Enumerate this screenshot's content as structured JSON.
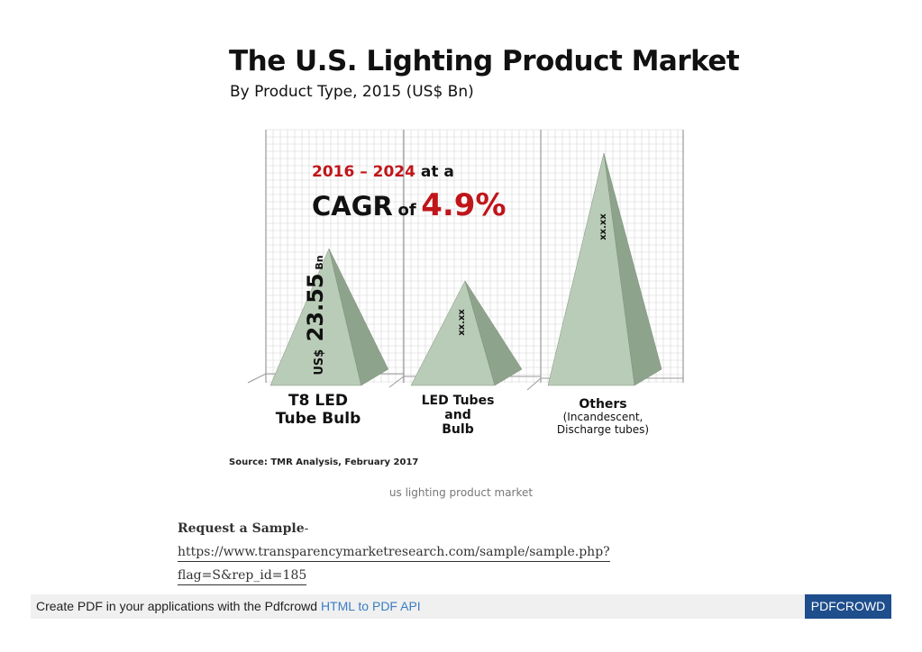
{
  "chart_data": {
    "type": "bar",
    "title": "The U.S. Lighting Product Market",
    "subtitle": "By Product Type, 2015 (US$ Bn)",
    "categories": [
      {
        "label": "T8 LED Tube Bulb",
        "sublabel": ""
      },
      {
        "label": "LED Tubes and Bulb",
        "sublabel": ""
      },
      {
        "label": "Others",
        "sublabel": "(Incandescent, Discharge tubes)"
      }
    ],
    "values": [
      23.55,
      18,
      40
    ],
    "value_labels": [
      "US$ 23.55 Bn",
      "xx.xx",
      "xx.xx"
    ],
    "annotation": {
      "years": "2016 – 2024",
      "at_a": "at a",
      "cagr": "CAGR",
      "of": "of",
      "rate": "4.9%"
    },
    "source": "Source: TMR Analysis, February 2017",
    "colors": {
      "pyramid_front": "#b9ccb7",
      "pyramid_side": "#8ea38c",
      "highlight": "#c0151a",
      "grid": "#d4d4d4"
    }
  },
  "caption": "us lighting product market",
  "request": {
    "label": "Request a Sample",
    "link_line1": "https://www.transparencymarketresearch.com/sample/sample.php?",
    "link_line2": "flag=S&rep_id=185"
  },
  "footer": {
    "text": "Create PDF in your applications with the Pdfcrowd ",
    "link": "HTML to PDF API",
    "button": "PDFCROWD"
  }
}
